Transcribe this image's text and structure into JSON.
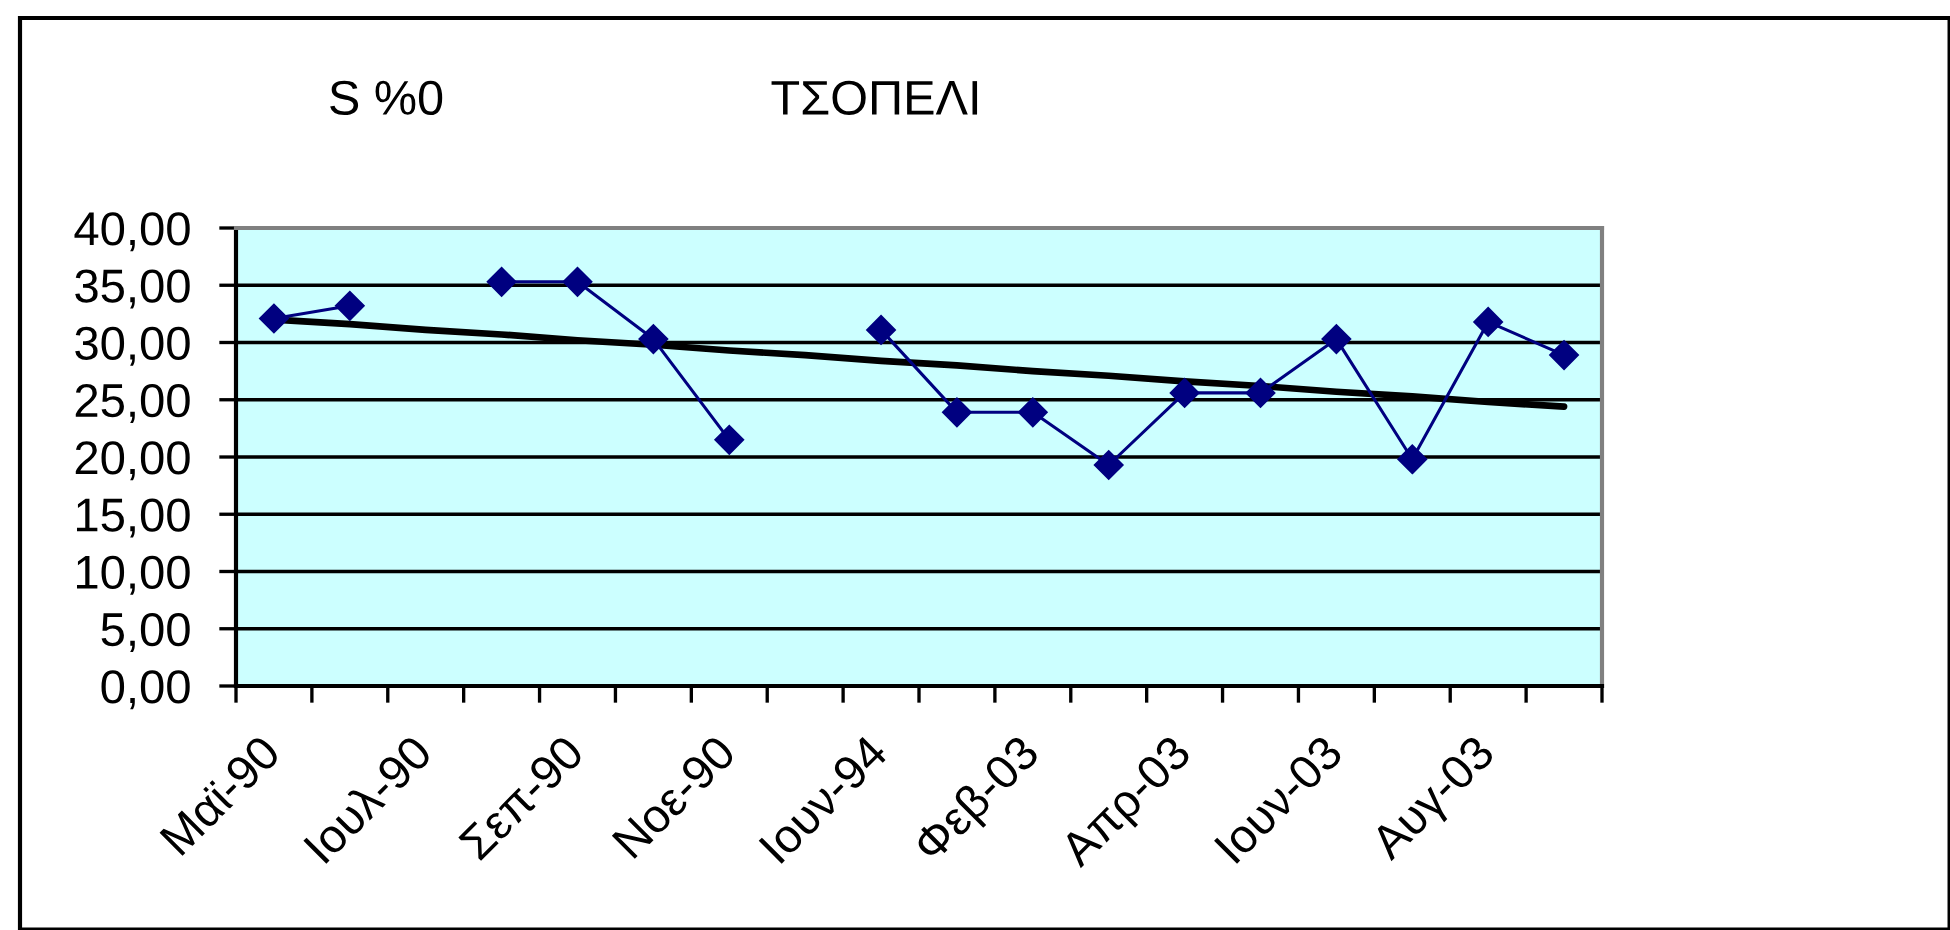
{
  "chart_data": {
    "type": "line",
    "title": "ΤΣΟΠΕΛΙ",
    "ylabel": "S %0",
    "categories": [
      "Μαϊ-90",
      null,
      "Ιουλ-90",
      null,
      "Σεπ-90",
      null,
      "Νοε-90",
      null,
      "Ιουν-94",
      null,
      "Φεβ-03",
      null,
      "Απρ-03",
      null,
      "Ιουν-03",
      null,
      "Αυγ-03",
      null
    ],
    "series": [
      {
        "color": "#000080",
        "values": [
          32.1,
          33.2,
          null,
          35.3,
          35.3,
          30.3,
          21.5,
          null,
          31.1,
          23.9,
          23.9,
          19.3,
          25.6,
          25.6,
          30.3,
          19.8,
          31.8,
          28.9
        ]
      },
      {
        "type": "line",
        "color": "#000000",
        "marker": "none",
        "values": [
          32.0,
          31.6,
          31.1,
          30.7,
          30.2,
          29.8,
          29.3,
          28.9,
          28.4,
          28.0,
          27.5,
          27.1,
          26.6,
          26.2,
          25.7,
          25.3,
          24.8,
          24.4
        ]
      }
    ],
    "ylim": [
      0,
      40
    ],
    "yticks": [
      {
        "value": 0,
        "label": "0,00"
      },
      {
        "value": 5,
        "label": "5,00"
      },
      {
        "value": 10,
        "label": "10,00"
      },
      {
        "value": 15,
        "label": "15,00"
      },
      {
        "value": 20,
        "label": "20,00"
      },
      {
        "value": 25,
        "label": "25,00"
      },
      {
        "value": 30,
        "label": "30,00"
      },
      {
        "value": 35,
        "label": "35,00"
      },
      {
        "value": 40,
        "label": "40,00"
      }
    ],
    "grid": "y",
    "marker": "diamond",
    "line_style": "solid"
  }
}
